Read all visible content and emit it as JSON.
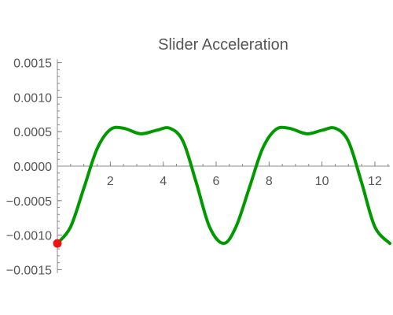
{
  "chart_data": {
    "type": "line",
    "title": "Slider Acceleration",
    "xlabel": "",
    "ylabel": "",
    "xlim": [
      0,
      12.566
    ],
    "ylim": [
      -0.00155,
      0.00155
    ],
    "x_ticks": [
      2,
      4,
      6,
      8,
      10,
      12
    ],
    "x_tick_labels": [
      "2",
      "4",
      "6",
      "8",
      "10",
      "12"
    ],
    "y_ticks": [
      -0.0015,
      -0.001,
      -0.0005,
      0.0,
      0.0005,
      0.001,
      0.0015
    ],
    "y_tick_labels": [
      "−0.0015",
      "−0.0010",
      "−0.0005",
      "0.0000",
      "0.0005",
      "0.0010",
      "0.0015"
    ],
    "grid": false,
    "series": [
      {
        "color": "#009900",
        "x": [
          0,
          0.5,
          1.0,
          1.5,
          2.0,
          2.5,
          3.1416,
          3.75,
          4.25,
          4.75,
          5.25,
          5.75,
          6.2832,
          6.75,
          7.25,
          7.75,
          8.25,
          8.75,
          9.4248,
          10.0,
          10.5,
          11.0,
          11.5,
          12.0,
          12.566
        ],
        "y": [
          -0.00112,
          -0.00088,
          -0.00032,
          0.00025,
          0.00053,
          0.00055,
          0.00047,
          0.00052,
          0.00055,
          0.00036,
          -0.00024,
          -0.00088,
          -0.00112,
          -0.00088,
          -0.00032,
          0.00025,
          0.00053,
          0.00055,
          0.00047,
          0.00052,
          0.00055,
          0.00036,
          -0.00024,
          -0.00088,
          -0.00112
        ]
      }
    ],
    "marker": {
      "x": 0,
      "y": -0.00112,
      "color": "#ee1111"
    }
  }
}
